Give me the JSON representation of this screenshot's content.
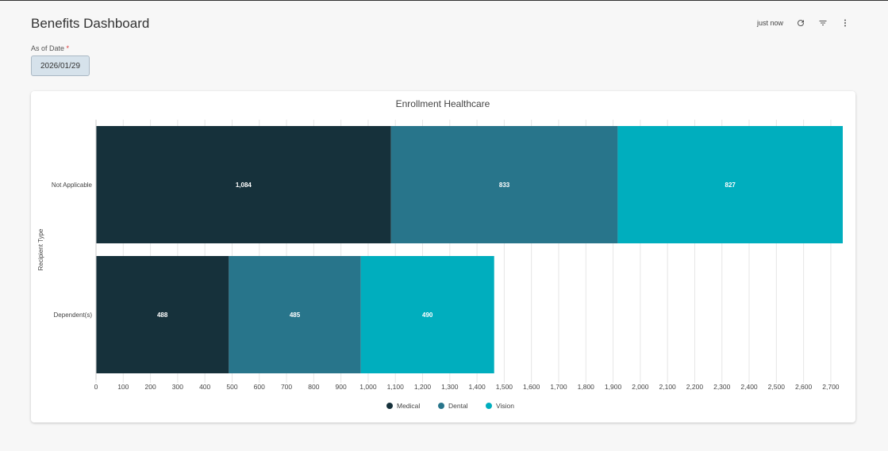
{
  "header": {
    "title": "Benefits Dashboard",
    "refresh_status": "just now",
    "icons": [
      "refresh-icon",
      "filter-icon",
      "more-vert-icon"
    ]
  },
  "filter": {
    "label": "As of Date",
    "required_mark": "*",
    "value": "2026/01/29"
  },
  "chart_data": {
    "type": "bar",
    "orientation": "horizontal",
    "stacked": true,
    "title": "Enrollment Healthcare",
    "ylabel": "Recipient Type",
    "xlabel": "",
    "categories": [
      "Not Applicable",
      "Dependent(s)"
    ],
    "series": [
      {
        "name": "Medical",
        "values": [
          1084,
          488
        ],
        "labels": [
          "1,084",
          "488"
        ],
        "color": "#16313b"
      },
      {
        "name": "Dental",
        "values": [
          833,
          485
        ],
        "labels": [
          "833",
          "485"
        ],
        "color": "#28758b"
      },
      {
        "name": "Vision",
        "values": [
          827,
          490
        ],
        "labels": [
          "827",
          "490"
        ],
        "color": "#00aebe"
      }
    ],
    "xlim": [
      0,
      2744
    ],
    "xticks": [
      0,
      100,
      200,
      300,
      400,
      500,
      600,
      700,
      800,
      900,
      1000,
      1100,
      1200,
      1300,
      1400,
      1500,
      1600,
      1700,
      1800,
      1900,
      2000,
      2100,
      2200,
      2300,
      2400,
      2500,
      2600,
      2700
    ],
    "xtick_labels": [
      "0",
      "100",
      "200",
      "300",
      "400",
      "500",
      "600",
      "700",
      "800",
      "900",
      "1,000",
      "1,100",
      "1,200",
      "1,300",
      "1,400",
      "1,500",
      "1,600",
      "1,700",
      "1,800",
      "1,900",
      "2,000",
      "2,100",
      "2,200",
      "2,300",
      "2,400",
      "2,500",
      "2,600",
      "2,700"
    ],
    "grid": true,
    "legend": "bottom"
  }
}
